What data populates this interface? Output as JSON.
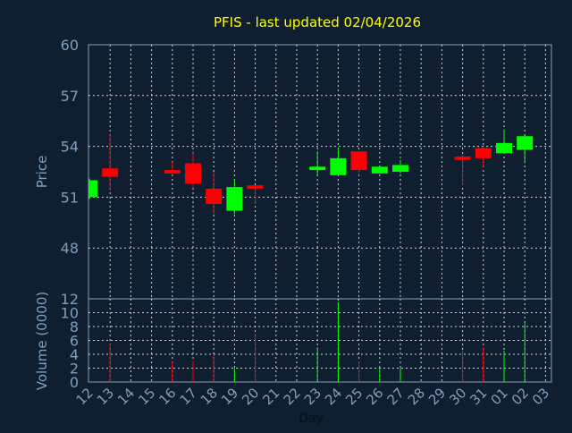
{
  "chart_data": {
    "type": "candlestick",
    "title": "PFIS - last updated 02/04/2026",
    "xlabel": "Day",
    "price_panel": {
      "ylabel": "Price",
      "ylim": [
        45,
        60
      ],
      "yticks": [
        48,
        51,
        54,
        57,
        60
      ],
      "grid": true
    },
    "volume_panel": {
      "ylabel": "Volume (0000)",
      "ylim": [
        0,
        12
      ],
      "yticks": [
        0,
        2,
        4,
        6,
        8,
        10,
        12
      ],
      "grid": true
    },
    "x_ticks": [
      "12",
      "13",
      "14",
      "15",
      "16",
      "17",
      "18",
      "19",
      "20",
      "21",
      "22",
      "23",
      "24",
      "25",
      "26",
      "27",
      "28",
      "29",
      "30",
      "31",
      "01",
      "02",
      "03"
    ],
    "candles": [
      {
        "i": 0,
        "open": 51.0,
        "high": 52.1,
        "low": 50.9,
        "close": 52.0,
        "volume": 0
      },
      {
        "i": 1,
        "open": 52.7,
        "high": 54.7,
        "low": 51.4,
        "close": 52.2,
        "volume": 5.6
      },
      {
        "i": 4,
        "open": 52.6,
        "high": 53.1,
        "low": 52.3,
        "close": 52.4,
        "volume": 3.0
      },
      {
        "i": 5,
        "open": 53.0,
        "high": 53.6,
        "low": 51.6,
        "close": 51.8,
        "volume": 3.0
      },
      {
        "i": 6,
        "open": 51.5,
        "high": 52.5,
        "low": 50.0,
        "close": 50.6,
        "volume": 4.0
      },
      {
        "i": 7,
        "open": 50.2,
        "high": 52.0,
        "low": 50.0,
        "close": 51.6,
        "volume": 2.0
      },
      {
        "i": 8,
        "open": 51.7,
        "high": 51.7,
        "low": 50.6,
        "close": 51.5,
        "volume": 6.8
      },
      {
        "i": 11,
        "open": 52.6,
        "high": 53.7,
        "low": 52.3,
        "close": 52.8,
        "volume": 5.0
      },
      {
        "i": 12,
        "open": 52.3,
        "high": 53.9,
        "low": 52.3,
        "close": 53.3,
        "volume": 11.5
      },
      {
        "i": 13,
        "open": 53.7,
        "high": 53.7,
        "low": 52.3,
        "close": 52.6,
        "volume": 3.0
      },
      {
        "i": 14,
        "open": 52.4,
        "high": 52.8,
        "low": 52.4,
        "close": 52.8,
        "volume": 2.0
      },
      {
        "i": 15,
        "open": 52.5,
        "high": 53.2,
        "low": 52.4,
        "close": 52.9,
        "volume": 2.0
      },
      {
        "i": 18,
        "open": 53.4,
        "high": 53.5,
        "low": 51.7,
        "close": 53.2,
        "volume": 4.5
      },
      {
        "i": 19,
        "open": 53.9,
        "high": 53.9,
        "low": 52.8,
        "close": 53.3,
        "volume": 5.0
      },
      {
        "i": 20,
        "open": 53.6,
        "high": 55.0,
        "low": 53.6,
        "close": 54.2,
        "volume": 4.5
      },
      {
        "i": 21,
        "open": 53.8,
        "high": 54.6,
        "low": 53.0,
        "close": 54.6,
        "volume": 8.5
      }
    ],
    "colors": {
      "background": "#0f1f30",
      "plot_border": "#8aa0b8",
      "grid": "#c8d4e0",
      "title": "#ffff00",
      "axis_label": "#7f9fbf",
      "tick_label": "#7f9fbf",
      "up": "#00ff00",
      "down": "#ff0000"
    }
  }
}
